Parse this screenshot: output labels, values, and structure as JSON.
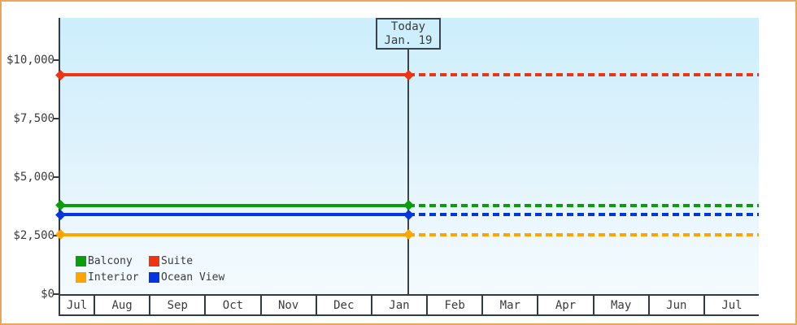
{
  "frame": {
    "border_color": "#e8a75f",
    "background": "#ffffff"
  },
  "palette": {
    "axis": "#333a42",
    "text": "#3b3b3b",
    "plot_bg_top": "#cdeefc",
    "plot_bg_bottom": "#f4fbfe",
    "today_box_bg": "#cdeefc"
  },
  "today_box": {
    "title": "Today",
    "date": "Jan. 19"
  },
  "legend": {
    "position": "bottom-left-inside-plot",
    "items": [
      {
        "label": "Balcony",
        "color": "#0a9e0a"
      },
      {
        "label": "Suite",
        "color": "#ee3511"
      },
      {
        "label": "Interior",
        "color": "#ffa500"
      },
      {
        "label": "Ocean View",
        "color": "#0336e0"
      }
    ]
  },
  "chart_data": {
    "type": "line",
    "title": "",
    "xlabel": "",
    "ylabel": "",
    "categories": [
      "Jul",
      "Aug",
      "Sep",
      "Oct",
      "Nov",
      "Dec",
      "Jan",
      "Feb",
      "Mar",
      "Apr",
      "May",
      "Jun",
      "Jul"
    ],
    "x_note": "13 month cells; first Jul cell is a partial month; timeline spans ~6 months before and after today (Jan. 19)",
    "yticks": [
      {
        "label": "$10,000",
        "value": 10000
      },
      {
        "label": "$7,500",
        "value": 7500
      },
      {
        "label": "$5,000",
        "value": 5000
      },
      {
        "label": "$2,500",
        "value": 2500
      },
      {
        "label": "$0",
        "value": 0
      }
    ],
    "ylim": [
      0,
      11800
    ],
    "grid": false,
    "legend_position": "bottom-left",
    "series": [
      {
        "name": "Suite",
        "color": "#ee3511",
        "value": 9375,
        "constant": true,
        "style_before_today": "solid",
        "style_after_today": "dashed",
        "markers_at": [
          "start",
          "today"
        ]
      },
      {
        "name": "Balcony",
        "color": "#0a9e0a",
        "value": 3800,
        "constant": true,
        "style_before_today": "solid",
        "style_after_today": "dashed",
        "markers_at": [
          "start",
          "today"
        ]
      },
      {
        "name": "Ocean View",
        "color": "#0336e0",
        "value": 3400,
        "constant": true,
        "style_before_today": "solid",
        "style_after_today": "dashed",
        "markers_at": [
          "start",
          "today"
        ]
      },
      {
        "name": "Interior",
        "color": "#ffa500",
        "value": 2550,
        "constant": true,
        "style_before_today": "solid",
        "style_after_today": "dashed",
        "markers_at": [
          "start",
          "today"
        ]
      }
    ],
    "annotations": [
      {
        "label": "Today",
        "sublabel": "Jan. 19",
        "x_position": "Jan 19",
        "marker": "vertical-line-with-box"
      }
    ]
  }
}
